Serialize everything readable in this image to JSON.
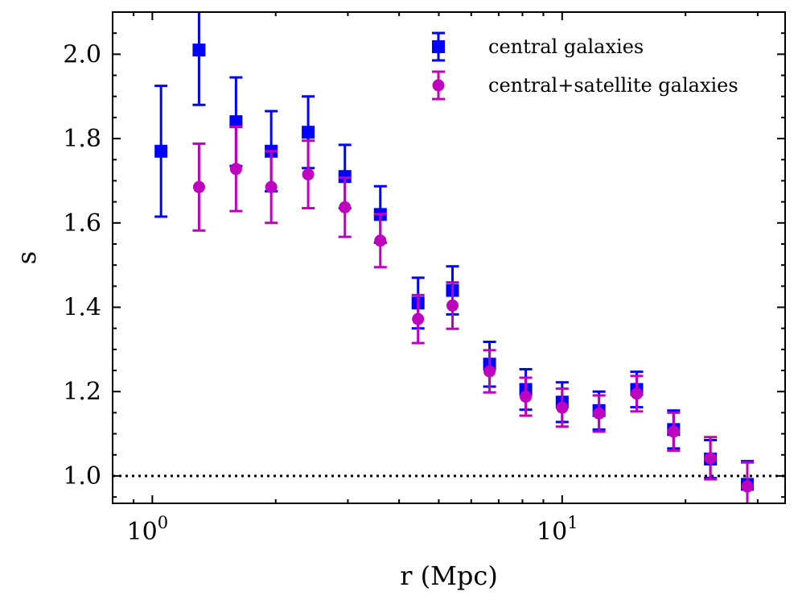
{
  "chart_data": {
    "type": "scatter",
    "xscale": "log",
    "xlim": [
      0.8,
      35
    ],
    "ylim": [
      0.935,
      2.1
    ],
    "xlabel": "r (Mpc)",
    "ylabel": "s",
    "x_ticks": [
      {
        "value": 1,
        "base": "10",
        "exp": "0"
      },
      {
        "value": 10,
        "base": "10",
        "exp": "1"
      }
    ],
    "y_ticks": [
      {
        "value": 1.0,
        "label": "1.0"
      },
      {
        "value": 1.2,
        "label": "1.2"
      },
      {
        "value": 1.4,
        "label": "1.4"
      },
      {
        "value": 1.6,
        "label": "1.6"
      },
      {
        "value": 1.8,
        "label": "1.8"
      },
      {
        "value": 2.0,
        "label": "2.0"
      }
    ],
    "reference_line": {
      "y": 1.0,
      "style": "dotted",
      "color": "#000000"
    },
    "legend_position": "top-right",
    "series": [
      {
        "name": "central galaxies",
        "marker": "square",
        "color": "#0000ff",
        "x": [
          1.05,
          1.3,
          1.6,
          1.95,
          2.4,
          2.95,
          3.6,
          4.45,
          5.4,
          6.65,
          8.15,
          10.0,
          12.3,
          15.2,
          18.7,
          23.0,
          28.3
        ],
        "y": [
          1.77,
          2.01,
          1.84,
          1.77,
          1.815,
          1.71,
          1.62,
          1.41,
          1.44,
          1.265,
          1.205,
          1.175,
          1.155,
          1.205,
          1.11,
          1.04,
          0.98
        ],
        "yerr": [
          0.155,
          0.13,
          0.105,
          0.095,
          0.085,
          0.075,
          0.067,
          0.06,
          0.057,
          0.053,
          0.048,
          0.047,
          0.045,
          0.042,
          0.045,
          0.045,
          0.055
        ]
      },
      {
        "name": "central+satellite galaxies",
        "marker": "circle",
        "color": "#bf00bf",
        "x": [
          1.3,
          1.6,
          1.95,
          2.4,
          2.95,
          3.6,
          4.45,
          5.4,
          6.65,
          8.15,
          10.0,
          12.3,
          15.2,
          18.7,
          23.0,
          28.3
        ],
        "y": [
          1.685,
          1.728,
          1.685,
          1.715,
          1.637,
          1.558,
          1.372,
          1.404,
          1.248,
          1.188,
          1.162,
          1.148,
          1.195,
          1.105,
          1.042,
          0.975
        ],
        "yerr": [
          0.103,
          0.1,
          0.085,
          0.08,
          0.07,
          0.063,
          0.057,
          0.055,
          0.05,
          0.045,
          0.045,
          0.043,
          0.042,
          0.045,
          0.05,
          0.057
        ]
      }
    ]
  }
}
